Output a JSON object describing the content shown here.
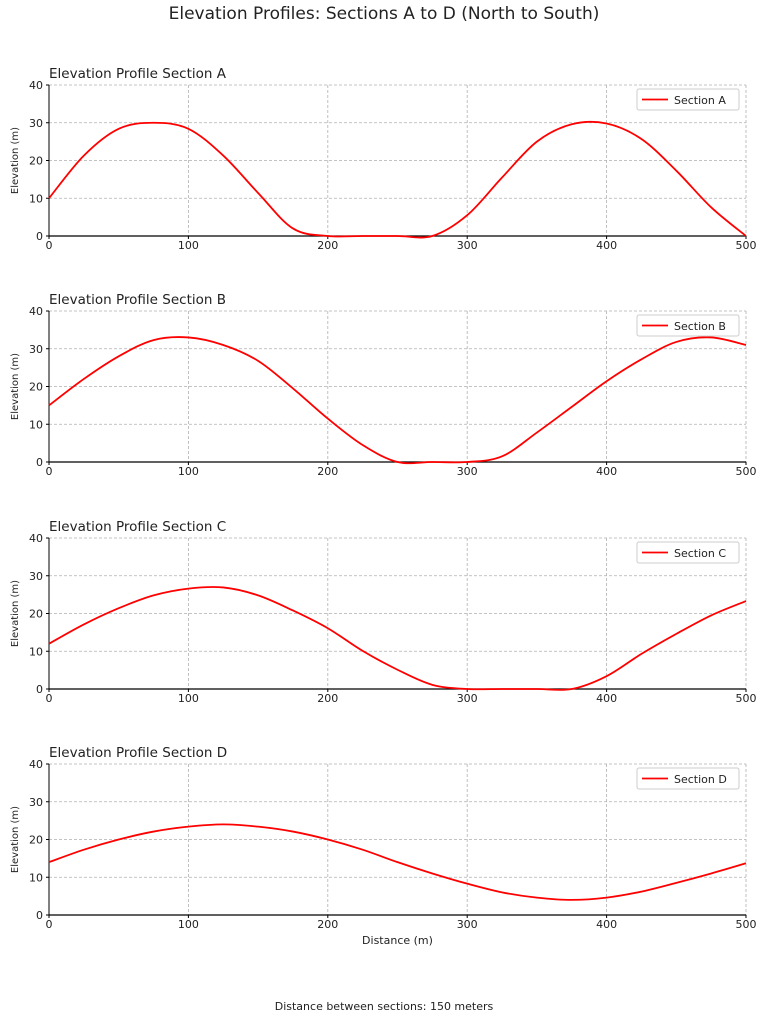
{
  "title": "Elevation Profiles: Sections A to D (North to South)",
  "footnote": "Distance between sections: 150 meters",
  "colors": {
    "line": "#ff0000",
    "grid": "#b0b0b0",
    "axis": "#000000"
  },
  "chart_data": [
    {
      "type": "line",
      "title": "Elevation Profile Section A",
      "xlabel": "",
      "ylabel": "Elevation (m)",
      "xlim": [
        0,
        500
      ],
      "ylim": [
        0,
        40
      ],
      "xticks": [
        0,
        100,
        200,
        300,
        400,
        500
      ],
      "yticks": [
        0,
        10,
        20,
        30,
        40
      ],
      "grid": true,
      "legend": "top-right",
      "series": [
        {
          "name": "Section A",
          "x": [
            0,
            25,
            50,
            75,
            100,
            125,
            150,
            175,
            200,
            225,
            250,
            275,
            300,
            325,
            350,
            375,
            400,
            425,
            450,
            475,
            500
          ],
          "values": [
            10,
            21.3,
            28.4,
            30.0,
            28.4,
            21.3,
            11.4,
            2.0,
            0,
            0,
            0,
            0,
            5.5,
            15.5,
            25.0,
            29.6,
            29.8,
            25.7,
            17.3,
            7.6,
            0
          ]
        }
      ]
    },
    {
      "type": "line",
      "title": "Elevation Profile Section B",
      "xlabel": "",
      "ylabel": "Elevation (m)",
      "xlim": [
        0,
        500
      ],
      "ylim": [
        0,
        40
      ],
      "xticks": [
        0,
        100,
        200,
        300,
        400,
        500
      ],
      "yticks": [
        0,
        10,
        20,
        30,
        40
      ],
      "grid": true,
      "legend": "top-right",
      "series": [
        {
          "name": "Section B",
          "x": [
            0,
            25,
            50,
            75,
            100,
            125,
            150,
            175,
            200,
            225,
            250,
            275,
            300,
            325,
            350,
            375,
            400,
            425,
            450,
            475,
            500
          ],
          "values": [
            15,
            22.0,
            28.0,
            32.3,
            33.0,
            31.0,
            26.8,
            19.5,
            11.5,
            4.5,
            0,
            0,
            0,
            1.5,
            7.8,
            14.6,
            21.4,
            27.2,
            31.8,
            33.0,
            31.0
          ]
        }
      ]
    },
    {
      "type": "line",
      "title": "Elevation Profile Section C",
      "xlabel": "",
      "ylabel": "Elevation (m)",
      "xlim": [
        0,
        500
      ],
      "ylim": [
        0,
        40
      ],
      "xticks": [
        0,
        100,
        200,
        300,
        400,
        500
      ],
      "yticks": [
        0,
        10,
        20,
        30,
        40
      ],
      "grid": true,
      "legend": "top-right",
      "series": [
        {
          "name": "Section C",
          "x": [
            0,
            25,
            50,
            75,
            100,
            125,
            150,
            175,
            200,
            225,
            250,
            275,
            300,
            325,
            350,
            375,
            400,
            425,
            450,
            475,
            500
          ],
          "values": [
            12,
            17.1,
            21.4,
            24.8,
            26.6,
            26.9,
            24.8,
            20.8,
            16.1,
            10.1,
            5.1,
            1.1,
            0,
            0,
            0,
            0,
            3.4,
            9.3,
            14.6,
            19.5,
            23.3
          ]
        }
      ]
    },
    {
      "type": "line",
      "title": "Elevation Profile Section D",
      "xlabel": "Distance (m)",
      "ylabel": "Elevation (m)",
      "xlim": [
        0,
        500
      ],
      "ylim": [
        0,
        40
      ],
      "xticks": [
        0,
        100,
        200,
        300,
        400,
        500
      ],
      "yticks": [
        0,
        10,
        20,
        30,
        40
      ],
      "grid": true,
      "legend": "top-right",
      "series": [
        {
          "name": "Section D",
          "x": [
            0,
            25,
            50,
            75,
            100,
            125,
            150,
            175,
            200,
            225,
            250,
            275,
            300,
            325,
            350,
            375,
            400,
            425,
            450,
            475,
            500
          ],
          "values": [
            14,
            17.3,
            20.0,
            22.1,
            23.4,
            24.0,
            23.4,
            22.1,
            20.0,
            17.3,
            14.0,
            11.0,
            8.3,
            6.0,
            4.6,
            4.0,
            4.6,
            6.2,
            8.5,
            11.0,
            13.7
          ]
        }
      ]
    }
  ]
}
